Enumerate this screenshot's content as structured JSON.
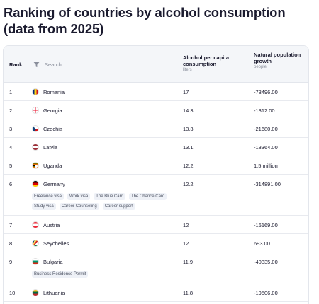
{
  "title": "Ranking of countries by alcohol consumption (data from 2025)",
  "table": {
    "headers": {
      "rank": "Rank",
      "search_placeholder": "Search",
      "alcohol": "Alcohol per capita consumption",
      "alcohol_unit": "liters",
      "growth": "Natural population growth",
      "growth_unit": "people"
    },
    "rows": [
      {
        "rank": "1",
        "country": "Romania",
        "alcohol": "17",
        "growth": "-73496.00",
        "flag": "romania-flag-icon"
      },
      {
        "rank": "2",
        "country": "Georgia",
        "alcohol": "14.3",
        "growth": "-1312.00",
        "flag": "georgia-flag-icon"
      },
      {
        "rank": "3",
        "country": "Czechia",
        "alcohol": "13.3",
        "growth": "-21680.00",
        "flag": "czechia-flag-icon"
      },
      {
        "rank": "4",
        "country": "Latvia",
        "alcohol": "13.1",
        "growth": "-13364.00",
        "flag": "latvia-flag-icon"
      },
      {
        "rank": "5",
        "country": "Uganda",
        "alcohol": "12.2",
        "growth": "1.5 million",
        "flag": "uganda-flag-icon"
      },
      {
        "rank": "6",
        "country": "Germany",
        "alcohol": "12.2",
        "growth": "-314891.00",
        "flag": "germany-flag-icon",
        "tags": [
          "Freelance visa",
          "Work visa",
          "The Blue Card",
          "The Chance Card",
          "Study visa",
          "Career Counseling",
          "Career support"
        ]
      },
      {
        "rank": "7",
        "country": "Austria",
        "alcohol": "12",
        "growth": "-16169.00",
        "flag": "austria-flag-icon"
      },
      {
        "rank": "8",
        "country": "Seychelles",
        "alcohol": "12",
        "growth": "693.00",
        "flag": "seychelles-flag-icon"
      },
      {
        "rank": "9",
        "country": "Bulgaria",
        "alcohol": "11.9",
        "growth": "-40335.00",
        "flag": "bulgaria-flag-icon",
        "tags": [
          "Business Residence Permit"
        ]
      },
      {
        "rank": "10",
        "country": "Lithuania",
        "alcohol": "11.8",
        "growth": "-19506.00",
        "flag": "lithuania-flag-icon"
      }
    ]
  },
  "colors": {
    "header_bg": "#f4f6f9",
    "border": "#e3e6ec",
    "tag_bg": "#eef1f7"
  }
}
